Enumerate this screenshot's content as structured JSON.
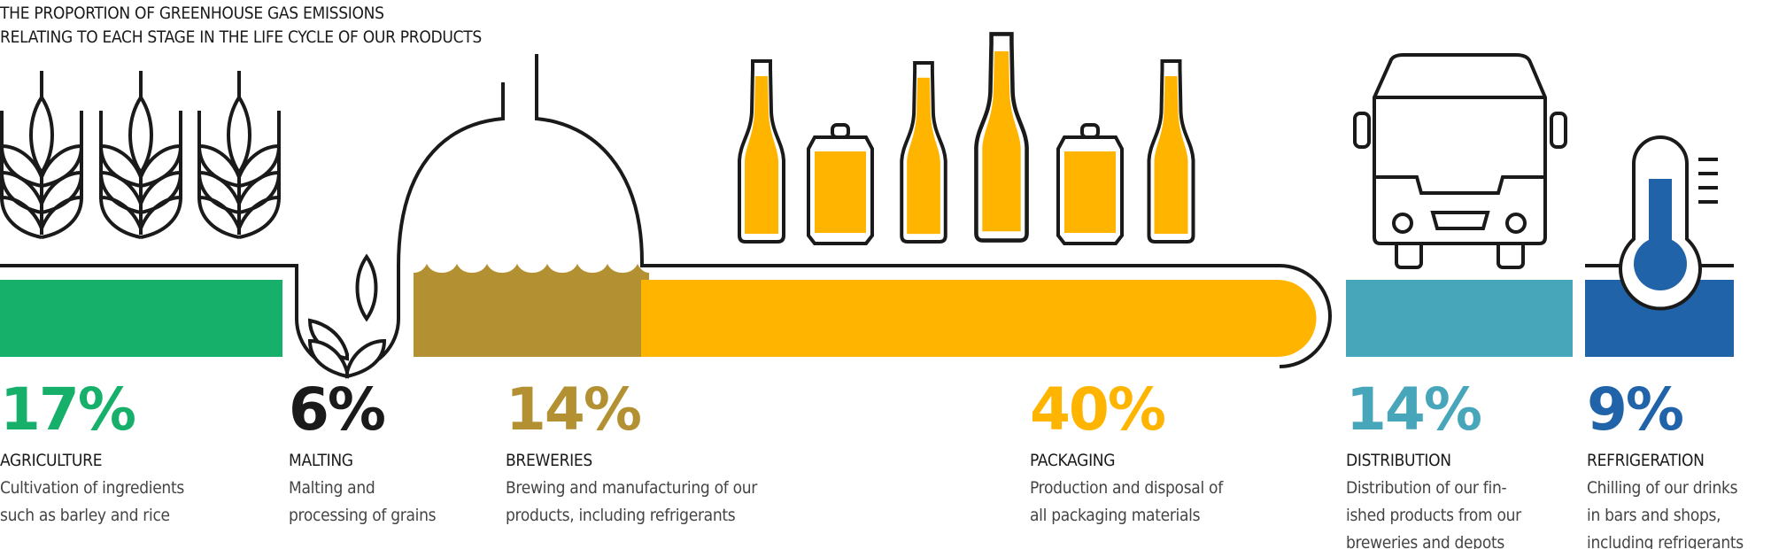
{
  "title": {
    "line1": "THE PROPORTION OF GREENHOUSE GAS EMISSIONS",
    "line2": "RELATING TO EACH STAGE IN THE LIFE CYCLE OF OUR PRODUCTS"
  },
  "stages": [
    {
      "percent": "17%",
      "value": 17,
      "label": "AGRICULTURE",
      "description": "Cultivation of ingredients\nsuch as barley and rice",
      "color": "#17b06b",
      "icon": "wheat-icon"
    },
    {
      "percent": "6%",
      "value": 6,
      "label": "MALTING",
      "description": "Malting and\nprocessing of grains",
      "color": "#1a1a1a",
      "icon": "grain-sprout-icon"
    },
    {
      "percent": "14%",
      "value": 14,
      "label": "BREWERIES",
      "description": "Brewing and manufacturing of our\nproducts, including refrigerants",
      "color": "#b39133",
      "icon": "brew-kettle-icon"
    },
    {
      "percent": "40%",
      "value": 40,
      "label": "PACKAGING",
      "description": "Production and disposal of\nall packaging materials",
      "color": "#ffb400",
      "icon": "bottles-and-cans-icon"
    },
    {
      "percent": "14%",
      "value": 14,
      "label": "DISTRIBUTION",
      "description": "Distribution of our fin-\nished products from our\nbreweries and depots",
      "color": "#48a6bb",
      "icon": "truck-icon"
    },
    {
      "percent": "9%",
      "value": 9,
      "label": "REFRIGERATION",
      "description": "Chilling of our drinks\nin bars and shops,\nincluding refrigerants",
      "color": "#2063a8",
      "icon": "thermometer-icon"
    }
  ]
}
